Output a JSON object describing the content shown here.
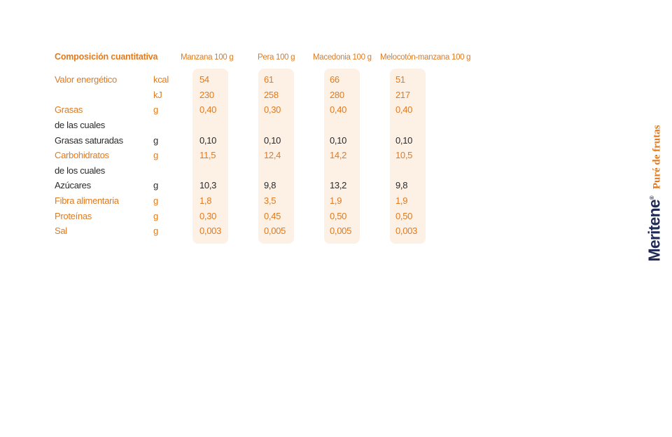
{
  "table": {
    "title": "Composición cuantitativa",
    "columns": [
      "Manzana 100 g",
      "Pera 100 g",
      "Macedonia 100 g",
      "Melocotón-manzana 100 g"
    ],
    "rows": [
      {
        "label": "Valor energético",
        "unit": "kcal",
        "values": [
          "54",
          "61",
          "66",
          "51"
        ],
        "style": "orange"
      },
      {
        "label": "",
        "unit": "kJ",
        "values": [
          "230",
          "258",
          "280",
          "217"
        ],
        "style": "orange"
      },
      {
        "label": "Grasas",
        "unit": "g",
        "values": [
          "0,40",
          "0,30",
          "0,40",
          "0,40"
        ],
        "style": "orange"
      },
      {
        "label": "de las cuales",
        "unit": "",
        "values": [
          "",
          "",
          "",
          ""
        ],
        "style": "dark"
      },
      {
        "label": "Grasas saturadas",
        "unit": "g",
        "values": [
          "0,10",
          "0,10",
          "0,10",
          "0,10"
        ],
        "style": "dark"
      },
      {
        "label": "Carbohidratos",
        "unit": "g",
        "values": [
          "11,5",
          "12,4",
          "14,2",
          "10,5"
        ],
        "style": "orange"
      },
      {
        "label": "de los cuales",
        "unit": "",
        "values": [
          "",
          "",
          "",
          ""
        ],
        "style": "dark"
      },
      {
        "label": "Azúcares",
        "unit": "g",
        "values": [
          "10,3",
          "9,8",
          "13,2",
          "9,8"
        ],
        "style": "dark"
      },
      {
        "label": "Fibra alimentaria",
        "unit": "g",
        "values": [
          "1,8",
          "3,5",
          "1,9",
          "1,9"
        ],
        "style": "orange"
      },
      {
        "label": "Proteínas",
        "unit": "g",
        "values": [
          "0,30",
          "0,45",
          "0,50",
          "0,50"
        ],
        "style": "orange"
      },
      {
        "label": "Sal",
        "unit": "g",
        "values": [
          "0,003",
          "0,005",
          "0,005",
          "0,003"
        ],
        "style": "orange"
      }
    ]
  },
  "side": {
    "brand": "Meritene",
    "brand_mark": "®",
    "product": "Puré de frutas"
  },
  "colors": {
    "accent": "#e07a1f",
    "text_dark": "#2a2a2a",
    "column_bg": "#fdf1e6",
    "brand_navy": "#1f2a55"
  }
}
